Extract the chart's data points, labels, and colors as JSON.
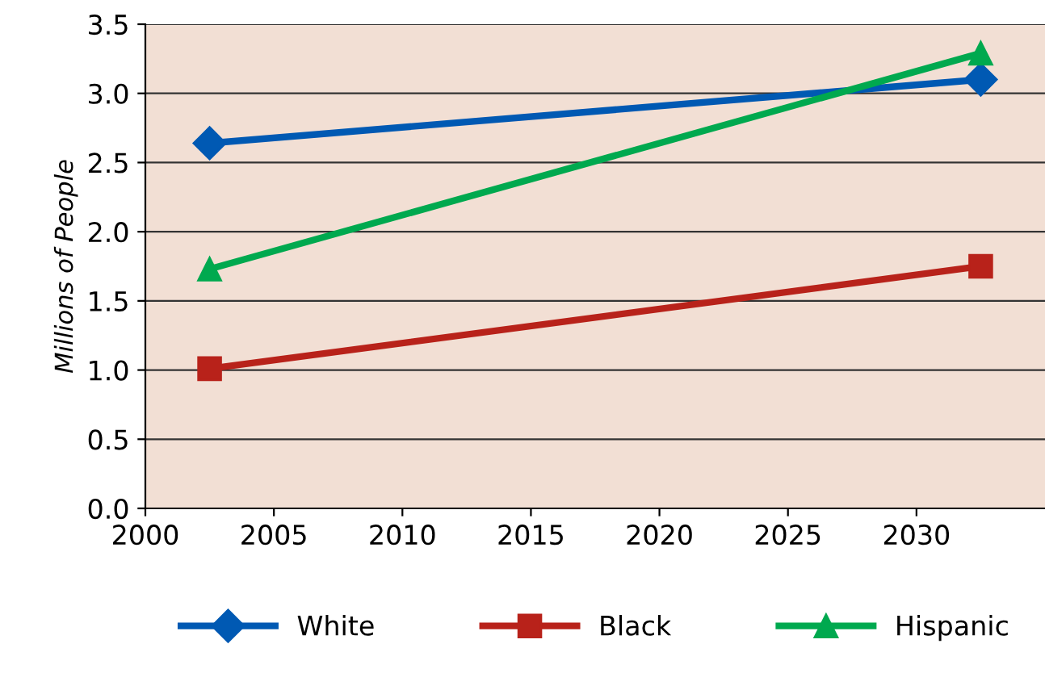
{
  "chart_data": {
    "type": "line",
    "ylabel": "Millions of People",
    "x": [
      2002.5,
      2032.5
    ],
    "series": [
      {
        "name": "White",
        "color": "#0059b3",
        "values": [
          2.64,
          3.1
        ],
        "marker": "diamond"
      },
      {
        "name": "Black",
        "color": "#b8221a",
        "values": [
          1.01,
          1.75
        ],
        "marker": "square"
      },
      {
        "name": "Hispanic",
        "color": "#00a94f",
        "values": [
          1.73,
          3.29
        ],
        "marker": "triangle"
      }
    ],
    "xlim": [
      2000,
      2035
    ],
    "xticks": [
      2000,
      2005,
      2010,
      2015,
      2020,
      2025,
      2030
    ],
    "ylim": [
      0,
      3.5
    ],
    "yticks": [
      {
        "value": 0,
        "label": "0.0"
      },
      {
        "value": 0.5,
        "label": "0.5"
      },
      {
        "value": 1,
        "label": "1.0"
      },
      {
        "value": 1.5,
        "label": "1.5"
      },
      {
        "value": 2,
        "label": "2.0"
      },
      {
        "value": 2.5,
        "label": "2.5"
      },
      {
        "value": 3,
        "label": "3.0"
      },
      {
        "value": 3.5,
        "label": "3.5"
      }
    ],
    "grid": "y",
    "legend": "bottom",
    "line_style": "solid"
  }
}
